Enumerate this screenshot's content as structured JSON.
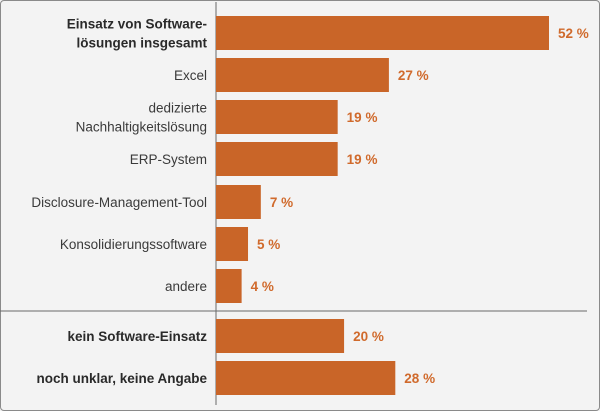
{
  "chart_data": {
    "type": "bar",
    "orientation": "horizontal",
    "unit": "%",
    "xlim": [
      0,
      60
    ],
    "bar_color": "#c96528",
    "label_color": "#d06a2c",
    "categories": [
      {
        "label_lines": [
          "Einsatz von Software-",
          "lösungen insgesamt"
        ],
        "value": 52,
        "label": "52 %",
        "bold": true,
        "group": 1
      },
      {
        "label_lines": [
          "Excel"
        ],
        "value": 27,
        "label": "27 %",
        "bold": false,
        "group": 1
      },
      {
        "label_lines": [
          "dedizierte",
          "Nachhaltigkeitslösung"
        ],
        "value": 19,
        "label": "19 %",
        "bold": false,
        "group": 1
      },
      {
        "label_lines": [
          "ERP-System"
        ],
        "value": 19,
        "label": "19 %",
        "bold": false,
        "group": 1
      },
      {
        "label_lines": [
          "Disclosure-Management-Tool"
        ],
        "value": 7,
        "label": "7 %",
        "bold": false,
        "group": 1
      },
      {
        "label_lines": [
          "Konsolidierungssoftware"
        ],
        "value": 5,
        "label": "5 %",
        "bold": false,
        "group": 1
      },
      {
        "label_lines": [
          "andere"
        ],
        "value": 4,
        "label": "4 %",
        "bold": false,
        "group": 1
      },
      {
        "label_lines": [
          "kein Software-Einsatz"
        ],
        "value": 20,
        "label": "20 %",
        "bold": true,
        "group": 2
      },
      {
        "label_lines": [
          "noch unklar, keine Angabe"
        ],
        "value": 28,
        "label": "28 %",
        "bold": true,
        "group": 2
      }
    ]
  }
}
